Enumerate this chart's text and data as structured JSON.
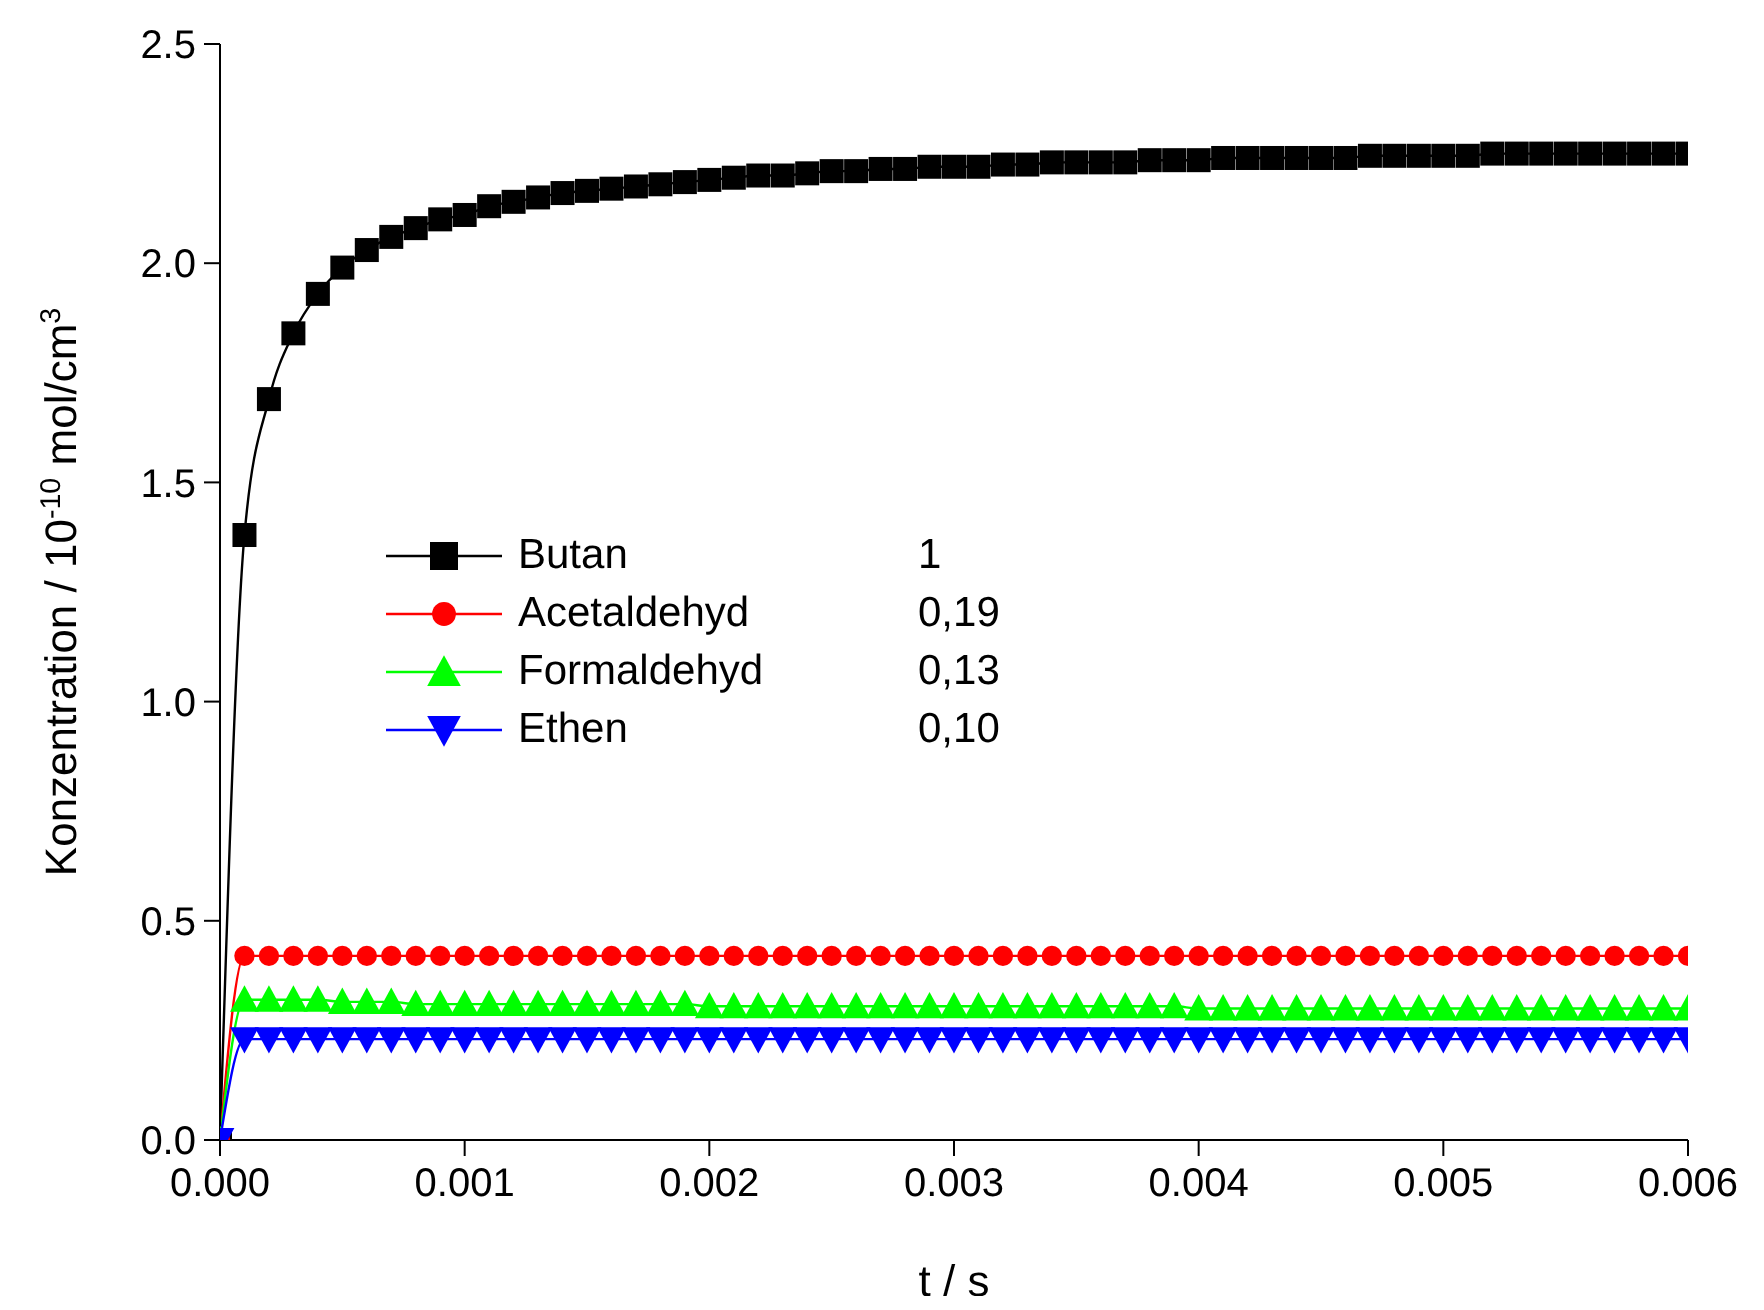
{
  "chart_data": {
    "type": "line",
    "xlabel": "t / s",
    "ylabel": "Konzentration / 10$^{-10}$ mol/cm$^{3}$",
    "x": [
      0,
      0.0001,
      0.0002,
      0.0003,
      0.0004,
      0.0005,
      0.0006,
      0.0007,
      0.0008,
      0.0009,
      0.001,
      0.0011,
      0.0012,
      0.0013,
      0.0014,
      0.0015,
      0.0016,
      0.0017,
      0.0018,
      0.0019,
      0.002,
      0.0021,
      0.0022,
      0.0023,
      0.0024,
      0.0025,
      0.0026,
      0.0027,
      0.0028,
      0.0029,
      0.003,
      0.0031,
      0.0032,
      0.0033,
      0.0034,
      0.0035,
      0.0036,
      0.0037,
      0.0038,
      0.0039,
      0.004,
      0.0041,
      0.0042,
      0.0043,
      0.0044,
      0.0045,
      0.0046,
      0.0047,
      0.0048,
      0.0049,
      0.005,
      0.0051,
      0.0052,
      0.0053,
      0.0054,
      0.0055,
      0.0056,
      0.0057,
      0.0058,
      0.0059,
      0.006
    ],
    "series": [
      {
        "name": "Butan",
        "color": "#000000",
        "marker": "square",
        "values": [
          0,
          1.38,
          1.69,
          1.84,
          1.93,
          1.99,
          2.03,
          2.06,
          2.08,
          2.1,
          2.11,
          2.13,
          2.14,
          2.15,
          2.16,
          2.165,
          2.17,
          2.175,
          2.18,
          2.185,
          2.19,
          2.195,
          2.2,
          2.2,
          2.205,
          2.21,
          2.21,
          2.215,
          2.215,
          2.22,
          2.22,
          2.22,
          2.225,
          2.225,
          2.23,
          2.23,
          2.23,
          2.23,
          2.235,
          2.235,
          2.235,
          2.24,
          2.24,
          2.24,
          2.24,
          2.24,
          2.24,
          2.245,
          2.245,
          2.245,
          2.245,
          2.245,
          2.25,
          2.25,
          2.25,
          2.25,
          2.25,
          2.25,
          2.25,
          2.25,
          2.25
        ]
      },
      {
        "name": "Acetaldehyd",
        "color": "#ff0000",
        "marker": "circle",
        "values": [
          0,
          0.42,
          0.42,
          0.42,
          0.42,
          0.42,
          0.42,
          0.42,
          0.42,
          0.42,
          0.42,
          0.42,
          0.42,
          0.42,
          0.42,
          0.42,
          0.42,
          0.42,
          0.42,
          0.42,
          0.42,
          0.42,
          0.42,
          0.42,
          0.42,
          0.42,
          0.42,
          0.42,
          0.42,
          0.42,
          0.42,
          0.42,
          0.42,
          0.42,
          0.42,
          0.42,
          0.42,
          0.42,
          0.42,
          0.42,
          0.42,
          0.42,
          0.42,
          0.42,
          0.42,
          0.42,
          0.42,
          0.42,
          0.42,
          0.42,
          0.42,
          0.42,
          0.42,
          0.42,
          0.42,
          0.42,
          0.42,
          0.42,
          0.42,
          0.42,
          0.42
        ]
      },
      {
        "name": "Formaldehyd",
        "color": "#00ff00",
        "marker": "triangle",
        "values": [
          0,
          0.32,
          0.32,
          0.32,
          0.32,
          0.315,
          0.315,
          0.315,
          0.31,
          0.31,
          0.31,
          0.31,
          0.31,
          0.31,
          0.31,
          0.31,
          0.31,
          0.31,
          0.31,
          0.31,
          0.305,
          0.305,
          0.305,
          0.305,
          0.305,
          0.305,
          0.305,
          0.305,
          0.305,
          0.305,
          0.305,
          0.305,
          0.305,
          0.305,
          0.305,
          0.305,
          0.305,
          0.305,
          0.305,
          0.305,
          0.3,
          0.3,
          0.3,
          0.3,
          0.3,
          0.3,
          0.3,
          0.3,
          0.3,
          0.3,
          0.3,
          0.3,
          0.3,
          0.3,
          0.3,
          0.3,
          0.3,
          0.3,
          0.3,
          0.3,
          0.3
        ]
      },
      {
        "name": "Ethen",
        "color": "#0000ff",
        "marker": "triangle-down",
        "values": [
          0,
          0.23,
          0.23,
          0.23,
          0.23,
          0.23,
          0.23,
          0.23,
          0.23,
          0.23,
          0.23,
          0.23,
          0.23,
          0.23,
          0.23,
          0.23,
          0.23,
          0.23,
          0.23,
          0.23,
          0.23,
          0.23,
          0.23,
          0.23,
          0.23,
          0.23,
          0.23,
          0.23,
          0.23,
          0.23,
          0.23,
          0.23,
          0.23,
          0.23,
          0.23,
          0.23,
          0.23,
          0.23,
          0.23,
          0.23,
          0.23,
          0.23,
          0.23,
          0.23,
          0.23,
          0.23,
          0.23,
          0.23,
          0.23,
          0.23,
          0.23,
          0.23,
          0.23,
          0.23,
          0.23,
          0.23,
          0.23,
          0.23,
          0.23,
          0.23,
          0.23
        ]
      }
    ],
    "annotations": [
      "1",
      "0,19",
      "0,13",
      "0,10"
    ],
    "xlim": [
      0,
      0.006
    ],
    "xticks": [
      {
        "value": 0,
        "label": "0.000"
      },
      {
        "value": 0.001,
        "label": "0.001"
      },
      {
        "value": 0.002,
        "label": "0.002"
      },
      {
        "value": 0.003,
        "label": "0.003"
      },
      {
        "value": 0.004,
        "label": "0.004"
      },
      {
        "value": 0.005,
        "label": "0.005"
      },
      {
        "value": 0.006,
        "label": "0.006"
      }
    ],
    "ylim": [
      0,
      2.5
    ],
    "yticks": [
      {
        "value": 0,
        "label": "0.0"
      },
      {
        "value": 0.5,
        "label": "0.5"
      },
      {
        "value": 1,
        "label": "1.0"
      },
      {
        "value": 1.5,
        "label": "1.5"
      },
      {
        "value": 2,
        "label": "2.0"
      },
      {
        "value": 2.5,
        "label": "2.5"
      }
    ],
    "legend": "left",
    "line_style": "solid",
    "grid": false
  }
}
